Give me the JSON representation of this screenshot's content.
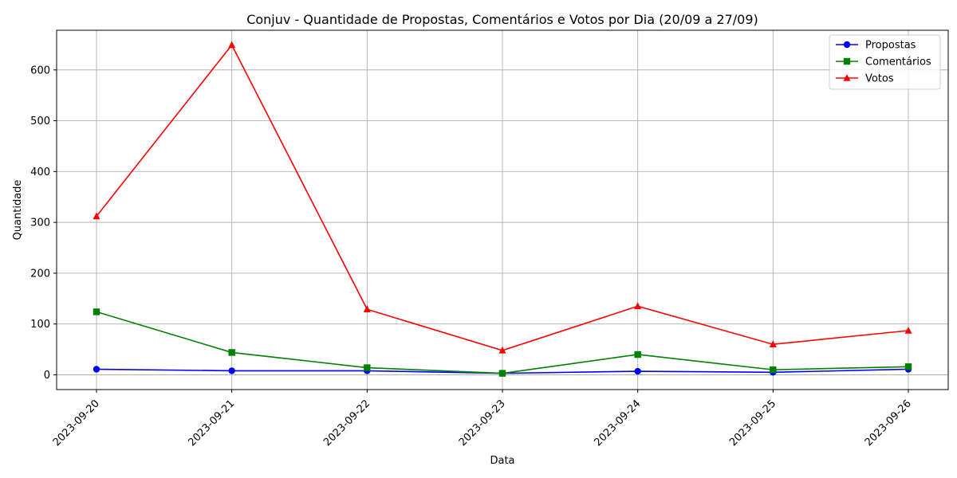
{
  "chart_data": {
    "type": "line",
    "title": "Conjuv - Quantidade de Propostas, Comentários e Votos por Dia (20/09 a 27/09)",
    "xlabel": "Data",
    "ylabel": "Quantidade",
    "categories": [
      "2023-09-20",
      "2023-09-21",
      "2023-09-22",
      "2023-09-23",
      "2023-09-24",
      "2023-09-25",
      "2023-09-26"
    ],
    "ylim": [
      -29,
      678
    ],
    "yticks": [
      0,
      100,
      200,
      300,
      400,
      500,
      600
    ],
    "grid": true,
    "legend_position": "top-right",
    "series": [
      {
        "name": "Propostas",
        "color": "#0000ff",
        "marker": "circle",
        "values": [
          11,
          8,
          8,
          3,
          7,
          5,
          11
        ]
      },
      {
        "name": "Comentários",
        "color": "#008000",
        "marker": "square",
        "values": [
          124,
          44,
          14,
          3,
          40,
          10,
          16
        ]
      },
      {
        "name": "Votos",
        "color": "#ff0000",
        "marker": "triangle",
        "values": [
          312,
          649,
          129,
          48,
          135,
          60,
          87
        ]
      }
    ]
  }
}
